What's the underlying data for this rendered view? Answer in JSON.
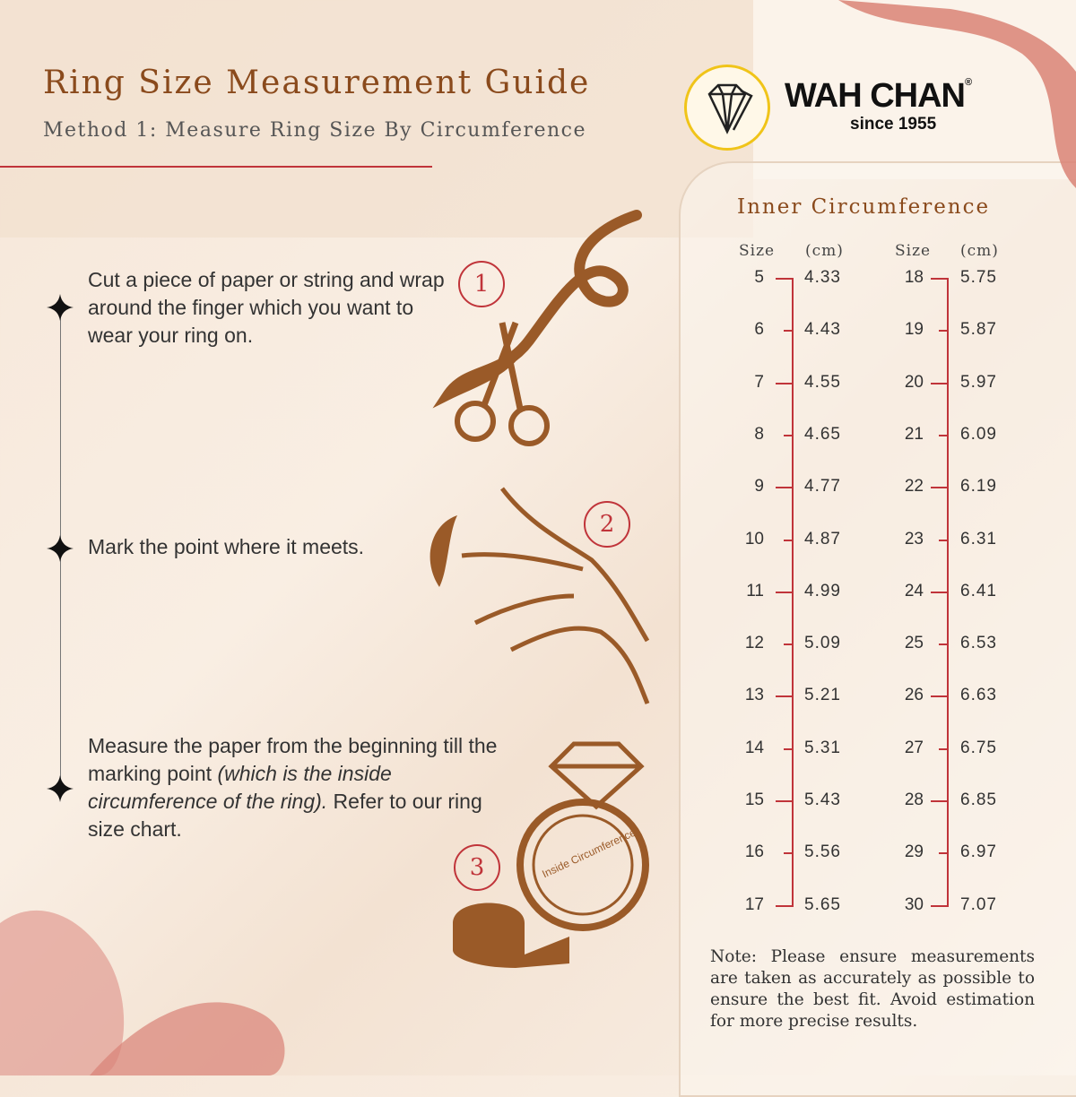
{
  "header": {
    "title": "Ring Size Measurement Guide",
    "subtitle": "Method 1: Measure Ring Size By Circumference"
  },
  "brand": {
    "name": "WAH CHAN",
    "registered": "®",
    "tagline": "since 1955",
    "ring_color": "#f0c419"
  },
  "steps": [
    {
      "number": "1",
      "text": "Cut a piece of paper or string and wrap around the finger which you want to wear your ring on.",
      "icon": "scissors-ribbon-icon"
    },
    {
      "number": "2",
      "text": "Mark the point where it meets.",
      "icon": "hand-ribbon-icon"
    },
    {
      "number": "3",
      "text_before": "Measure the paper from the beginning till the marking point ",
      "text_italic": "(which is the inside circumference of the ring).",
      "text_after": " Refer to our ring size chart.",
      "icon": "ring-tape-measure-icon",
      "ring_label": "Inside Circumference"
    }
  ],
  "size_chart": {
    "title": "Inner Circumference",
    "size_header": "Size",
    "cm_header": "(cm)",
    "columns": [
      [
        [
          "5",
          "4.33"
        ],
        [
          "6",
          "4.43"
        ],
        [
          "7",
          "4.55"
        ],
        [
          "8",
          "4.65"
        ],
        [
          "9",
          "4.77"
        ],
        [
          "10",
          "4.87"
        ],
        [
          "11",
          "4.99"
        ],
        [
          "12",
          "5.09"
        ],
        [
          "13",
          "5.21"
        ],
        [
          "14",
          "5.31"
        ],
        [
          "15",
          "5.43"
        ],
        [
          "16",
          "5.56"
        ],
        [
          "17",
          "5.65"
        ]
      ],
      [
        [
          "18",
          "5.75"
        ],
        [
          "19",
          "5.87"
        ],
        [
          "20",
          "5.97"
        ],
        [
          "21",
          "6.09"
        ],
        [
          "22",
          "6.19"
        ],
        [
          "23",
          "6.31"
        ],
        [
          "24",
          "6.41"
        ],
        [
          "25",
          "6.53"
        ],
        [
          "26",
          "6.63"
        ],
        [
          "27",
          "6.75"
        ],
        [
          "28",
          "6.85"
        ],
        [
          "29",
          "6.97"
        ],
        [
          "30",
          "7.07"
        ]
      ]
    ]
  },
  "note": "Note: Please ensure measurements are taken as accurately as possible to ensure the best fit. Avoid estimation for more precise results.",
  "colors": {
    "accent_red": "#c0343a",
    "brown": "#9a5a28",
    "title_brown": "#8a4a1c",
    "ribbon": "#d98276"
  }
}
